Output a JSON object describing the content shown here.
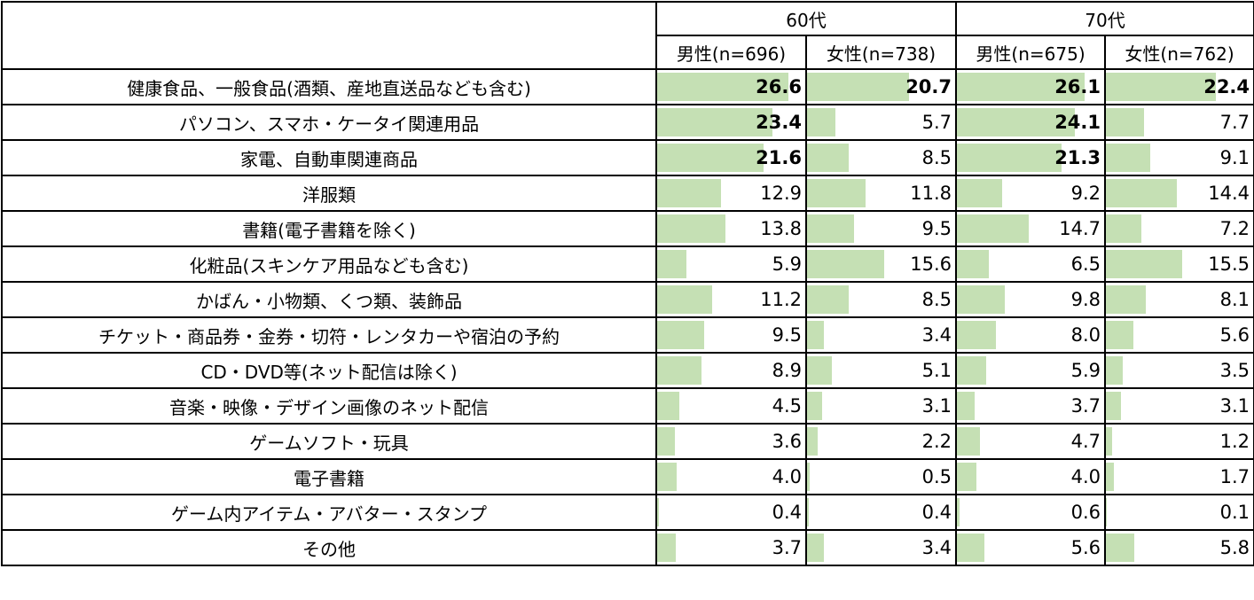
{
  "chart_data": {
    "type": "table",
    "groups": [
      "60代",
      "70代"
    ],
    "columns": [
      "男性(n=696)",
      "女性(n=738)",
      "男性(n=675)",
      "女性(n=762)"
    ],
    "bar_max": 30,
    "bar_color": "#c5e0b4",
    "rows": [
      {
        "label": "健康食品、一般食品(酒類、産地直送品なども含む)",
        "values": [
          "26.6",
          "20.7",
          "26.1",
          "22.4"
        ],
        "bold": [
          true,
          true,
          true,
          true
        ]
      },
      {
        "label": "パソコン、スマホ・ケータイ関連用品",
        "values": [
          "23.4",
          "5.7",
          "24.1",
          "7.7"
        ],
        "bold": [
          true,
          false,
          true,
          false
        ]
      },
      {
        "label": "家電、自動車関連商品",
        "values": [
          "21.6",
          "8.5",
          "21.3",
          "9.1"
        ],
        "bold": [
          true,
          false,
          true,
          false
        ]
      },
      {
        "label": "洋服類",
        "values": [
          "12.9",
          "11.8",
          "9.2",
          "14.4"
        ],
        "bold": [
          false,
          false,
          false,
          false
        ]
      },
      {
        "label": "書籍(電子書籍を除く)",
        "values": [
          "13.8",
          "9.5",
          "14.7",
          "7.2"
        ],
        "bold": [
          false,
          false,
          false,
          false
        ]
      },
      {
        "label": "化粧品(スキンケア用品なども含む)",
        "values": [
          "5.9",
          "15.6",
          "6.5",
          "15.5"
        ],
        "bold": [
          false,
          false,
          false,
          false
        ]
      },
      {
        "label": "かばん・小物類、くつ類、装飾品",
        "values": [
          "11.2",
          "8.5",
          "9.8",
          "8.1"
        ],
        "bold": [
          false,
          false,
          false,
          false
        ]
      },
      {
        "label": "チケット・商品券・金券・切符・レンタカーや宿泊の予約",
        "values": [
          "9.5",
          "3.4",
          "8.0",
          "5.6"
        ],
        "bold": [
          false,
          false,
          false,
          false
        ]
      },
      {
        "label": "CD・DVD等(ネット配信は除く)",
        "values": [
          "8.9",
          "5.1",
          "5.9",
          "3.5"
        ],
        "bold": [
          false,
          false,
          false,
          false
        ]
      },
      {
        "label": "音楽・映像・デザイン画像のネット配信",
        "values": [
          "4.5",
          "3.1",
          "3.7",
          "3.1"
        ],
        "bold": [
          false,
          false,
          false,
          false
        ]
      },
      {
        "label": "ゲームソフト・玩具",
        "values": [
          "3.6",
          "2.2",
          "4.7",
          "1.2"
        ],
        "bold": [
          false,
          false,
          false,
          false
        ]
      },
      {
        "label": "電子書籍",
        "values": [
          "4.0",
          "0.5",
          "4.0",
          "1.7"
        ],
        "bold": [
          false,
          false,
          false,
          false
        ]
      },
      {
        "label": "ゲーム内アイテム・アバター・スタンプ",
        "values": [
          "0.4",
          "0.4",
          "0.6",
          "0.1"
        ],
        "bold": [
          false,
          false,
          false,
          false
        ]
      },
      {
        "label": "その他",
        "values": [
          "3.7",
          "3.4",
          "5.6",
          "5.8"
        ],
        "bold": [
          false,
          false,
          false,
          false
        ]
      }
    ]
  }
}
